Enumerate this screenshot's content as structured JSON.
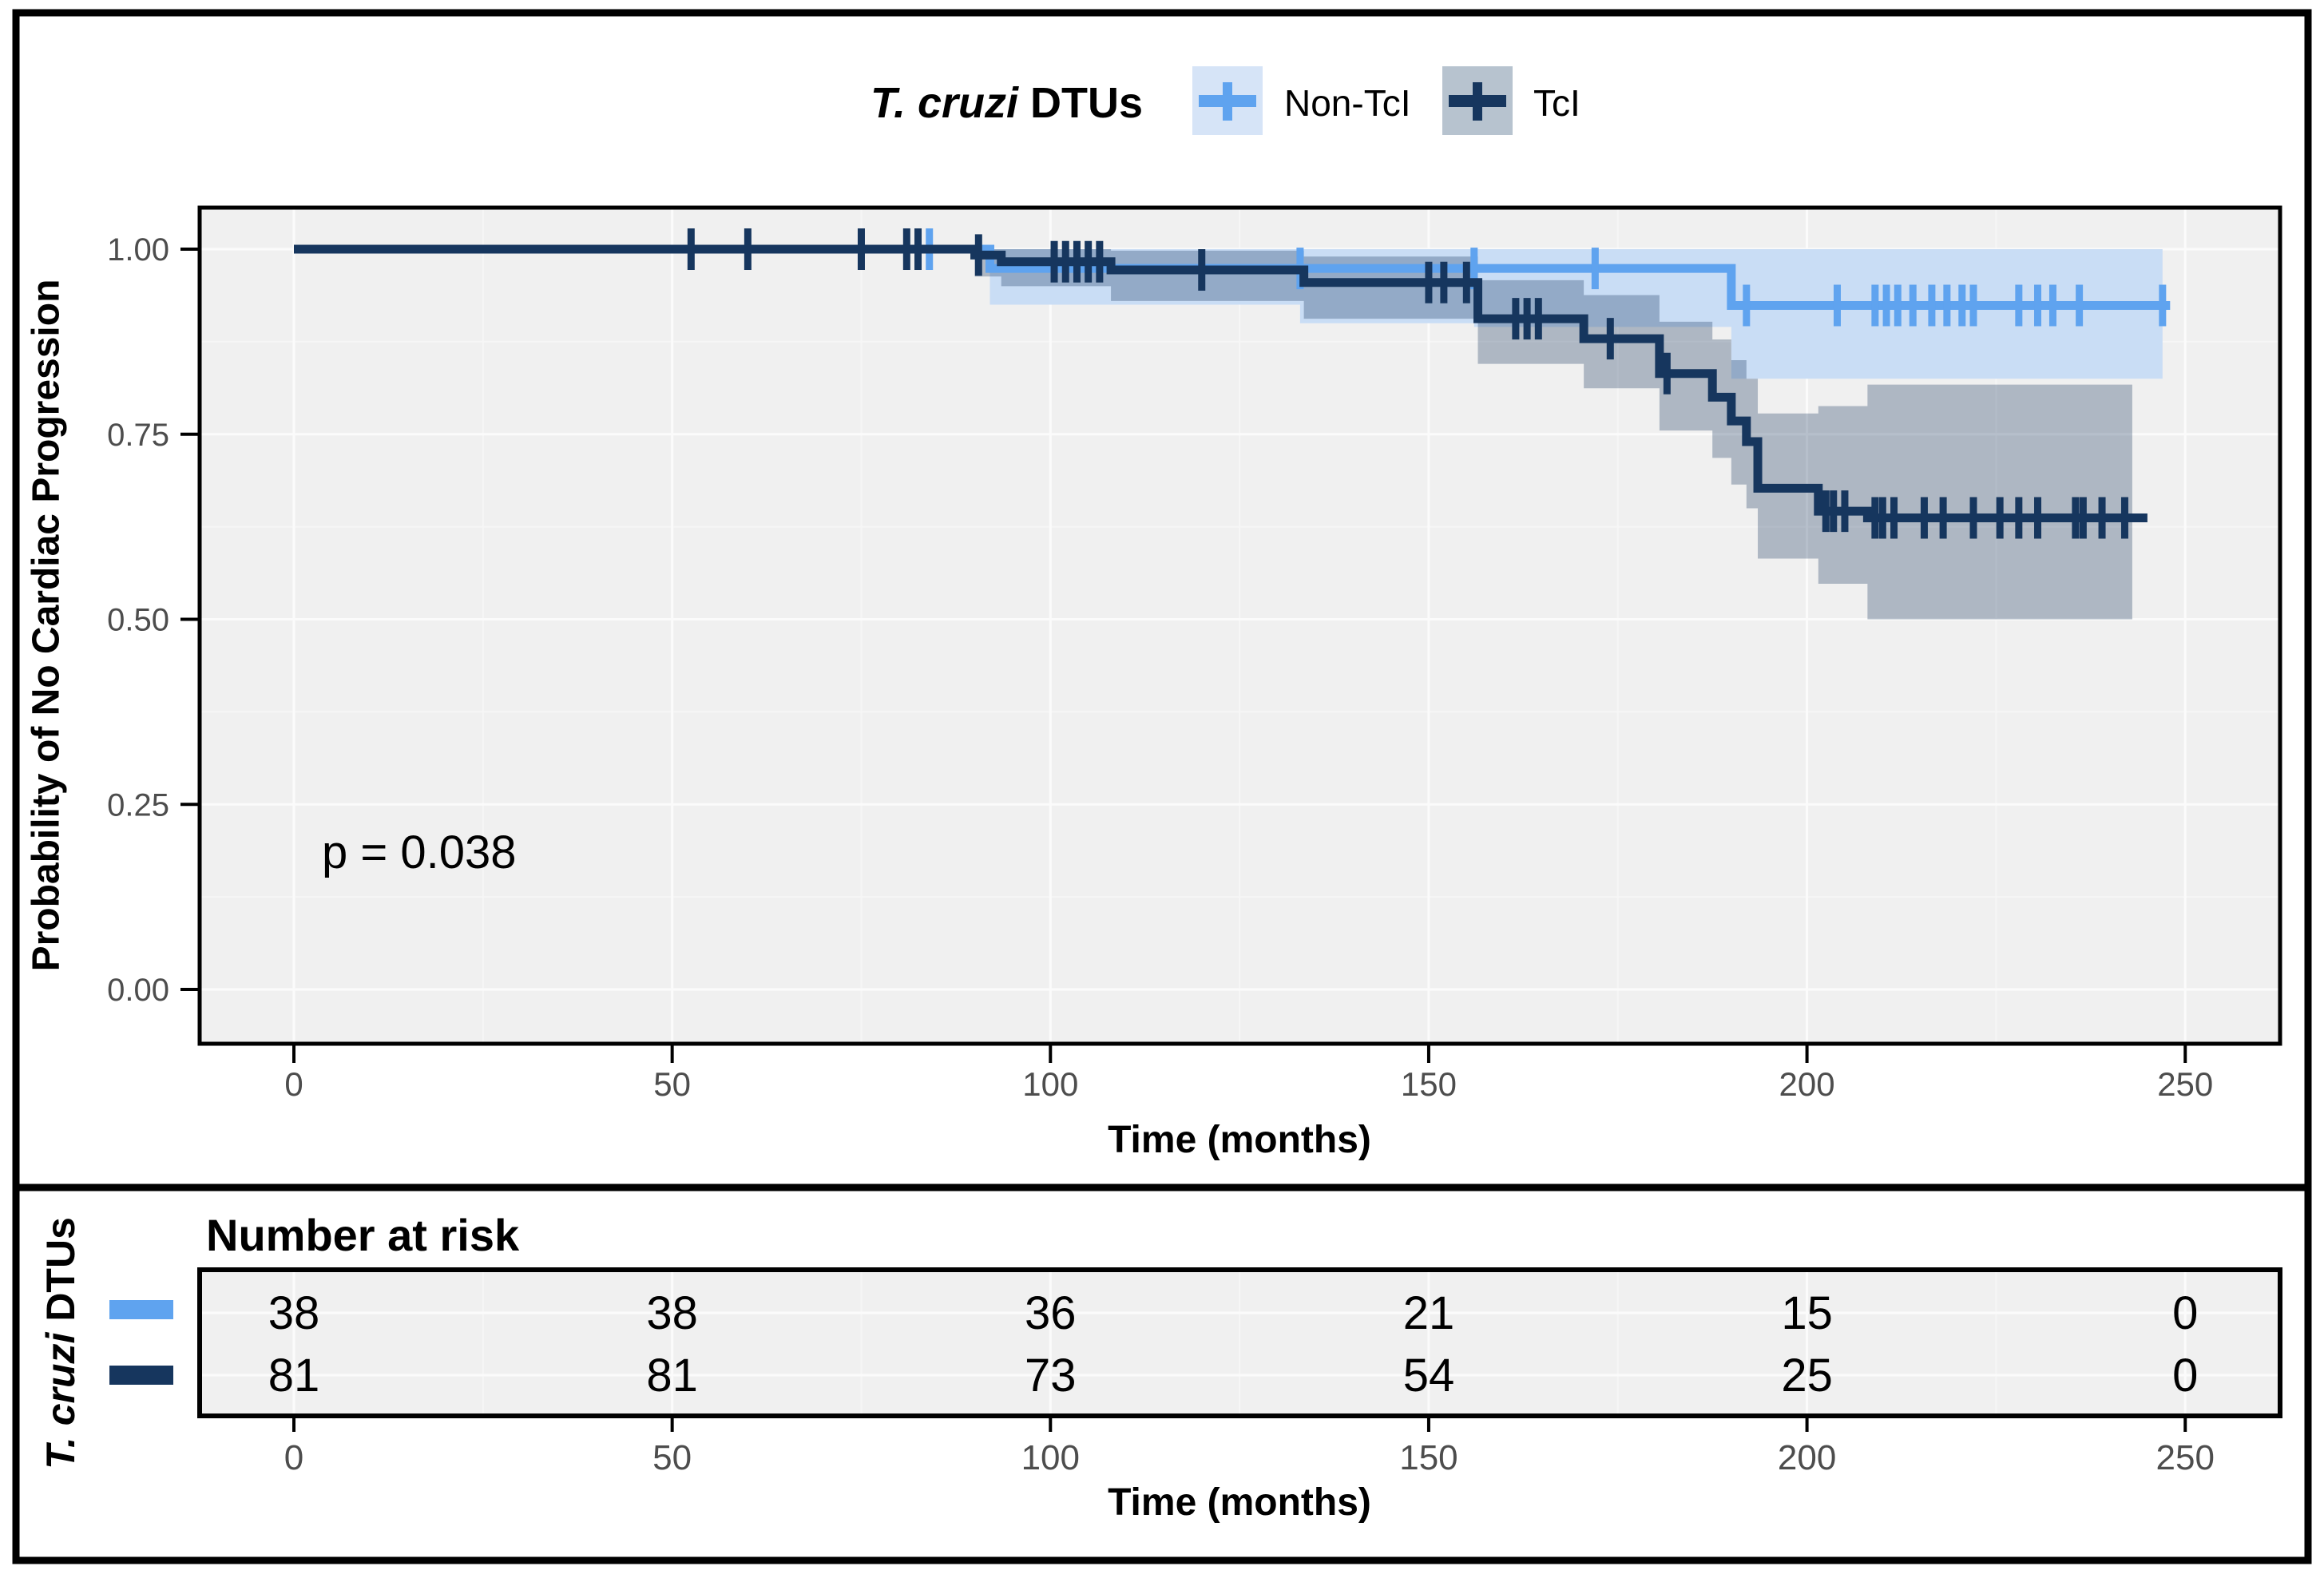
{
  "legend": {
    "title_italic": "T. cruzi",
    "title_rest": " DTUs",
    "items": [
      {
        "label": "Non-TcI",
        "key_bg": "#D6E4F7",
        "key_color": "#5FA3EF"
      },
      {
        "label": "TcI",
        "key_bg": "#B7C3CF",
        "key_color": "#16365E"
      }
    ]
  },
  "annotation": {
    "p_value": "p = 0.038"
  },
  "chart_data": {
    "type": "line",
    "subtype": "kaplan-meier-step",
    "title": "",
    "xlabel": "Time (months)",
    "ylabel": "Probability of No Cardiac Progression",
    "xlim": [
      -12.5,
      262.5
    ],
    "ylim": [
      0,
      1.05
    ],
    "x_ticks": [
      0,
      50,
      100,
      150,
      200,
      250
    ],
    "y_ticks": [
      "0.00",
      "0.25",
      "0.50",
      "0.75",
      "1.00"
    ],
    "grid": "white major and minor gridlines on gray panel",
    "legend_position": "top",
    "series": [
      {
        "name": "Non-TcI",
        "line_color": "#5FA3EF",
        "ribbon_color": "#C9DDF5",
        "steps": [
          [
            0,
            1.0
          ],
          [
            92,
            0.974
          ],
          [
            190,
            0.924
          ]
        ],
        "end_time": 248,
        "censor_times": [
          84,
          133,
          156,
          172,
          192,
          204,
          209,
          210.5,
          212,
          214,
          216.5,
          218.5,
          220.5,
          222,
          228,
          230.5,
          232.5,
          236,
          247
        ],
        "ci": [
          [
            92,
            0.925,
            1.0
          ],
          [
            133,
            0.9,
            1.0
          ],
          [
            156,
            0.895,
            1.0
          ],
          [
            190,
            0.825,
            1.0
          ]
        ],
        "ci_end": 247
      },
      {
        "name": "TcI",
        "line_color": "#16365E",
        "ribbon_color": "rgba(22,54,94,0.30)",
        "steps": [
          [
            0,
            1.0
          ],
          [
            90,
            0.992
          ],
          [
            93.5,
            0.983
          ],
          [
            108,
            0.972
          ],
          [
            133.5,
            0.955
          ],
          [
            156.5,
            0.906
          ],
          [
            170.5,
            0.879
          ],
          [
            180.5,
            0.832
          ],
          [
            187.5,
            0.8
          ],
          [
            190,
            0.768
          ],
          [
            192,
            0.74
          ],
          [
            193.5,
            0.677
          ],
          [
            201.5,
            0.646
          ],
          [
            208,
            0.637
          ]
        ],
        "end_time": 245,
        "censor_times": [
          52.5,
          60,
          75,
          81,
          82.5,
          90.5,
          100.5,
          102,
          103.5,
          105,
          106.5,
          120,
          150,
          152,
          155,
          161.5,
          163,
          164.5,
          174,
          181.5,
          202.5,
          203.5,
          205,
          209,
          210,
          211.5,
          215.5,
          218,
          222,
          225.5,
          228,
          230.5,
          235.5,
          236.5,
          239,
          242
        ],
        "ci": [
          [
            90,
            0.963,
            1.0
          ],
          [
            93.5,
            0.95,
            1.0
          ],
          [
            108,
            0.93,
            0.998
          ],
          [
            133.5,
            0.906,
            0.99
          ],
          [
            156.5,
            0.845,
            0.958
          ],
          [
            170.5,
            0.812,
            0.938
          ],
          [
            180.5,
            0.755,
            0.902
          ],
          [
            187.5,
            0.718,
            0.878
          ],
          [
            190,
            0.682,
            0.85
          ],
          [
            192,
            0.65,
            0.825
          ],
          [
            193.5,
            0.582,
            0.778
          ],
          [
            201.5,
            0.548,
            0.788
          ],
          [
            208,
            0.5,
            0.817
          ]
        ],
        "ci_end": 243
      }
    ]
  },
  "risk_table": {
    "header": "Number at risk",
    "axis_title_italic": "T. cruzi",
    "axis_title_rest": " DTUs",
    "xlabel": "Time (months)",
    "tick_labels": [
      "0",
      "50",
      "100",
      "150",
      "200",
      "250"
    ],
    "tick_values": [
      0,
      50,
      100,
      150,
      200,
      250
    ],
    "rows": [
      {
        "group": "Non-TcI",
        "swatch_color": "#5FA3EF",
        "counts": [
          "38",
          "38",
          "36",
          "21",
          "15",
          "0"
        ]
      },
      {
        "group": "TcI",
        "swatch_color": "#16365E",
        "counts": [
          "81",
          "81",
          "73",
          "54",
          "25",
          "0"
        ]
      }
    ]
  },
  "colors": {
    "panel_bg": "#F0F0F0",
    "grid_major": "#FBFBFB",
    "grid_minor": "#F6F6F6",
    "axis_text": "#4D4D4D",
    "border": "#000000"
  }
}
